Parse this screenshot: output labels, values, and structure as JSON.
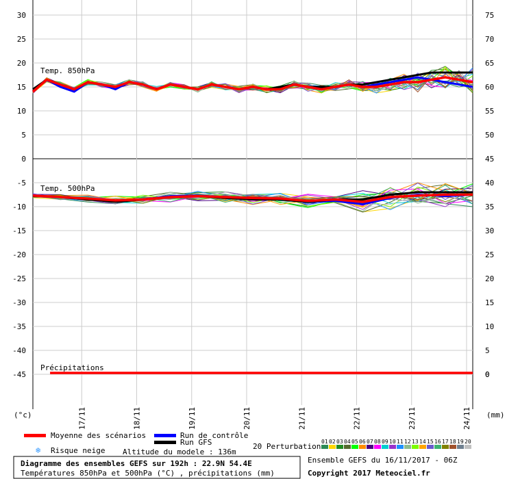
{
  "chart_data": [
    {
      "type": "line",
      "title": "Temp. 850hPa",
      "y_left_ticks": [
        30,
        25,
        20,
        15,
        10,
        5,
        0
      ],
      "y_right_ticks": [
        75,
        70,
        65,
        60,
        55,
        50,
        45
      ],
      "ylim": [
        0,
        32
      ],
      "x_range": [
        0,
        64
      ],
      "series": [
        {
          "name": "Moyenne des scénarios",
          "color": "#ff0000",
          "kind": "mean",
          "x": [
            0,
            2,
            4,
            6,
            8,
            10,
            12,
            14,
            16,
            18,
            20,
            22,
            24,
            26,
            28,
            30,
            32,
            34,
            36,
            38,
            40,
            42,
            44,
            46,
            48,
            50,
            52,
            54,
            56,
            58,
            60,
            62,
            64
          ],
          "y": [
            14,
            16.5,
            15.5,
            14.5,
            16,
            15.5,
            15,
            16,
            15.5,
            14.5,
            15.5,
            15,
            14.5,
            15.5,
            15,
            14.5,
            15,
            14.5,
            14.5,
            15.5,
            15,
            14.5,
            15,
            15.5,
            15,
            15,
            15.5,
            16,
            16,
            16.5,
            17,
            16.5,
            16
          ]
        },
        {
          "name": "Run de contrôle",
          "color": "#0000ff",
          "kind": "control",
          "x": [
            0,
            2,
            4,
            6,
            8,
            10,
            12,
            14,
            16,
            18,
            20,
            22,
            24,
            26,
            28,
            30,
            32,
            34,
            36,
            38,
            40,
            42,
            44,
            46,
            48,
            50,
            52,
            54,
            56,
            58,
            60,
            62,
            64
          ],
          "y": [
            14,
            16.5,
            15,
            14,
            16,
            15.5,
            14.5,
            16,
            15.5,
            14.5,
            15.5,
            15,
            14.5,
            15.5,
            15,
            14.5,
            15,
            14.5,
            14.5,
            15.5,
            15,
            14.5,
            15,
            15.5,
            15,
            15.5,
            16,
            16.5,
            17,
            16.5,
            16,
            15.5,
            15
          ]
        },
        {
          "name": "Run GFS",
          "color": "#000000",
          "kind": "gfs",
          "x": [
            0,
            2,
            4,
            6,
            8,
            10,
            12,
            14,
            16,
            18,
            20,
            22,
            24,
            26,
            28,
            30,
            32,
            34,
            36,
            38,
            40,
            42,
            44,
            46,
            48,
            50,
            52,
            54,
            56,
            58,
            60,
            62,
            64
          ],
          "y": [
            14.5,
            16.5,
            15.5,
            14.5,
            16,
            15.5,
            15,
            16,
            15.5,
            14.5,
            15.5,
            15,
            14.5,
            15.5,
            15,
            14.5,
            15,
            14.5,
            15,
            15.5,
            15,
            15,
            15,
            15.5,
            15.5,
            16,
            16.5,
            17,
            17.5,
            18,
            18,
            18,
            18
          ]
        }
      ],
      "perturbation_spread": [
        0.3,
        0.3,
        0.4,
        0.4,
        0.4,
        0.4,
        0.4,
        0.4,
        0.4,
        0.4,
        0.4,
        0.4,
        0.4,
        0.4,
        0.5,
        0.5,
        0.5,
        0.5,
        0.5,
        0.6,
        0.6,
        0.6,
        0.6,
        0.7,
        0.8,
        0.9,
        1,
        1.2,
        1.4,
        1.5,
        1.6,
        1.8,
        2
      ]
    },
    {
      "type": "line",
      "title": "Temp. 500hPa",
      "y_left_ticks": [
        -5,
        -10,
        -15,
        -20,
        -25,
        -30,
        -35,
        -40,
        -45
      ],
      "y_right_ticks": [
        40,
        35,
        30,
        25,
        20,
        15,
        10,
        5,
        0
      ],
      "ylim": [
        -49,
        -1
      ],
      "series": [
        {
          "name": "Moyenne des scénarios",
          "color": "#ff0000",
          "kind": "mean",
          "x": [
            0,
            4,
            8,
            12,
            16,
            20,
            24,
            28,
            32,
            36,
            40,
            44,
            48,
            52,
            56,
            60,
            64
          ],
          "y": [
            -7.7,
            -8,
            -8.3,
            -8.7,
            -8.5,
            -8,
            -7.8,
            -8,
            -8.2,
            -8.3,
            -8.8,
            -8.5,
            -9,
            -8,
            -7.7,
            -7.5,
            -7.5
          ]
        },
        {
          "name": "Run de contrôle",
          "color": "#0000ff",
          "kind": "control",
          "x": [
            0,
            4,
            8,
            12,
            16,
            20,
            24,
            28,
            32,
            36,
            40,
            44,
            48,
            52,
            56,
            60,
            64
          ],
          "y": [
            -7.8,
            -8,
            -8.5,
            -8.8,
            -8.5,
            -7.8,
            -7.7,
            -8,
            -8.3,
            -8.5,
            -9,
            -8.8,
            -9.5,
            -8.2,
            -7.5,
            -7.8,
            -7.5
          ]
        },
        {
          "name": "Run GFS",
          "color": "#000000",
          "kind": "gfs",
          "x": [
            0,
            4,
            8,
            12,
            16,
            20,
            24,
            28,
            32,
            36,
            40,
            44,
            48,
            52,
            56,
            60,
            64
          ],
          "y": [
            -7.8,
            -8,
            -8.5,
            -9,
            -8.5,
            -8,
            -7.8,
            -8.2,
            -8.5,
            -8.5,
            -9,
            -8.5,
            -8.5,
            -7.5,
            -7,
            -7,
            -7
          ]
        }
      ],
      "perturbation_spread": [
        0.3,
        0.4,
        0.5,
        0.6,
        0.6,
        0.7,
        0.7,
        0.8,
        0.9,
        0.9,
        1,
        1.2,
        1.6,
        1.8,
        1.8,
        1.8,
        1.8
      ]
    },
    {
      "type": "line",
      "title": "Précipitations",
      "series": [
        {
          "name": "Moyenne des scénarios",
          "color": "#ff0000",
          "x": [
            2,
            64
          ],
          "y": [
            0,
            0
          ]
        }
      ]
    }
  ],
  "x_axis": {
    "labels": [
      "17/11",
      "18/11",
      "19/11",
      "20/11",
      "21/11",
      "22/11",
      "23/11",
      "24/11"
    ],
    "label_positions": [
      8,
      16,
      24,
      32,
      40,
      48,
      56,
      64
    ]
  },
  "units": {
    "left": "(°c)",
    "right": "(mm)"
  },
  "legend": {
    "mean": "Moyenne des scénarios",
    "control": "Run de contrôle",
    "gfs": "Run GFS",
    "snow": "Risque neige",
    "altitude": "Altitude du modele : 136m",
    "perturbations_label": "20 Perturbations",
    "perturbation_numbers": [
      "01",
      "02",
      "03",
      "04",
      "05",
      "06",
      "07",
      "08",
      "09",
      "10",
      "11",
      "12",
      "13",
      "14",
      "15",
      "16",
      "17",
      "18",
      "19",
      "20"
    ],
    "perturbation_colors": [
      "#2e8b57",
      "#ffd700",
      "#228b22",
      "#556b2f",
      "#00ff00",
      "#ff8c00",
      "#4b0082",
      "#ff00ff",
      "#00ced1",
      "#9932cc",
      "#1e90ff",
      "#8fbc8f",
      "#7cfc00",
      "#ffa500",
      "#6a5acd",
      "#3cb371",
      "#808000",
      "#a0522d",
      "#708090",
      "#c0c0c0"
    ]
  },
  "footer": {
    "title": "Diagramme des ensembles GEFS sur 192h : 22.9N 54.4E",
    "subtitle": "Températures 850hPa et 500hPa (°C) , précipitations (mm)",
    "run": "Ensemble GEFS du 16/11/2017 - 06Z",
    "copyright": "Copyright 2017 Meteociel.fr"
  }
}
